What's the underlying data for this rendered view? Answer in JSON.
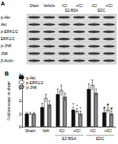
{
  "blot": {
    "label": "A",
    "lanes": [
      "Sham",
      "Vehicle",
      "-ICI",
      "+ICI",
      "-ICI",
      "+ICI"
    ],
    "lane_groups": [
      null,
      null,
      "E2-BSA",
      "E2-BSA",
      "EDC",
      "EDC"
    ],
    "rows": [
      "p-Akt",
      "Akt",
      "p-ERK1/2",
      "ERK1/2",
      "p-JNK",
      "JNK",
      "β-Actin"
    ]
  },
  "chart_data": {
    "type": "bar",
    "title": "B",
    "categories": [
      "Sham",
      "Veh",
      "-ICI",
      "+ICI",
      "-ICI",
      "+ICI"
    ],
    "x_groups": [
      null,
      null,
      "E2-BSA",
      "E2-BSA",
      "EDC",
      "EDC"
    ],
    "y_label": "Fold increase vs sham",
    "ylim": [
      0,
      4
    ],
    "yticks": [
      0,
      1,
      2,
      3,
      4
    ],
    "grid": false,
    "legend": "upper left",
    "series": [
      {
        "name": "p-Akt",
        "color": "#111111",
        "values": [
          1,
          1.5,
          2.5,
          1.3,
          2.9,
          1.1
        ],
        "errors": [
          0.1,
          0.3,
          0.4,
          0.2,
          0.4,
          0.2
        ],
        "annotations": [
          null,
          null,
          null,
          "*",
          null,
          "#"
        ]
      },
      {
        "name": "p-ERK1/2",
        "color": "#ffffff",
        "values": [
          1,
          2.2,
          2.8,
          1.2,
          3.2,
          1.3
        ],
        "errors": [
          0.1,
          0.3,
          0.4,
          0.2,
          0.4,
          0.2
        ],
        "annotations": [
          null,
          null,
          null,
          "*",
          null,
          "#"
        ]
      },
      {
        "name": "p-JNK",
        "color": "#888888",
        "values": [
          1,
          1.7,
          2.3,
          1.0,
          2.6,
          1.0
        ],
        "errors": [
          0.1,
          0.3,
          0.3,
          0.2,
          0.3,
          0.2
        ],
        "annotations": [
          null,
          null,
          null,
          "*",
          null,
          "#"
        ]
      }
    ]
  }
}
